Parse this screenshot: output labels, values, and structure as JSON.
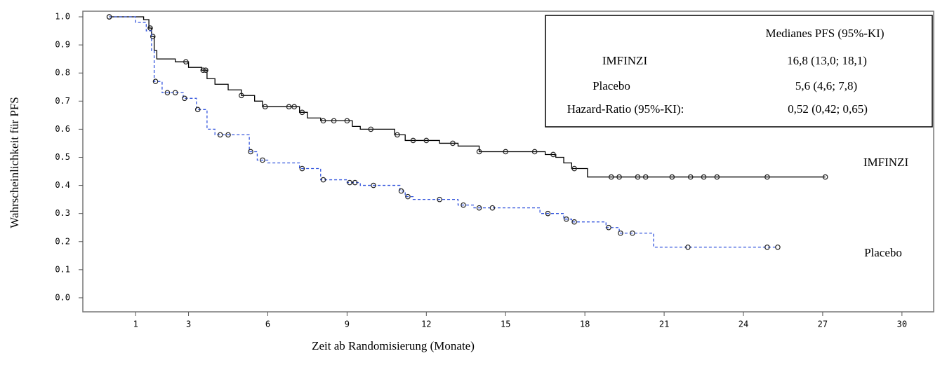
{
  "chart_data": {
    "type": "step",
    "x_label": "Zeit ab Randomisierung (Monate)",
    "y_label": "Wahrscheinlichkeit für PFS",
    "xlim": [
      -1,
      31.2
    ],
    "ylim": [
      -0.05,
      1.02
    ],
    "xticks": [
      1,
      3,
      6,
      9,
      12,
      15,
      18,
      21,
      24,
      27,
      30
    ],
    "yticks": [
      {
        "value": 0,
        "label": "0.0"
      },
      {
        "value": 0.1,
        "label": "0.1"
      },
      {
        "value": 0.2,
        "label": "0.2"
      },
      {
        "value": 0.3,
        "label": "0.3"
      },
      {
        "value": 0.4,
        "label": "0.4"
      },
      {
        "value": 0.5,
        "label": "0.5"
      },
      {
        "value": 0.6,
        "label": "0.6"
      },
      {
        "value": 0.7,
        "label": "0.7"
      },
      {
        "value": 0.8,
        "label": "0.8"
      },
      {
        "value": 0.9,
        "label": "0.9"
      },
      {
        "value": 1,
        "label": "1.0"
      }
    ],
    "series": [
      {
        "name": "IMFINZI",
        "color": "#000000",
        "line_style": "solid",
        "x": [
          0,
          1.3,
          1.5,
          1.6,
          1.7,
          1.8,
          2.5,
          3,
          3.5,
          3.7,
          4,
          4.5,
          5,
          5.5,
          5.8,
          7.2,
          7.5,
          8,
          9.2,
          9.5,
          10.8,
          11.2,
          12.5,
          13.2,
          14,
          16.5,
          16.9,
          17.2,
          17.5,
          18.1,
          27.1
        ],
        "values": [
          1.0,
          0.99,
          0.96,
          0.93,
          0.88,
          0.85,
          0.84,
          0.82,
          0.81,
          0.78,
          0.76,
          0.74,
          0.72,
          0.7,
          0.68,
          0.66,
          0.64,
          0.63,
          0.61,
          0.6,
          0.58,
          0.56,
          0.55,
          0.54,
          0.52,
          0.51,
          0.5,
          0.48,
          0.46,
          0.43,
          0.43
        ],
        "censored": [
          0,
          1.55,
          1.65,
          2.9,
          3.55,
          3.65,
          5.0,
          5.9,
          6.8,
          7.0,
          7.3,
          8.1,
          8.5,
          9.0,
          9.9,
          10.9,
          11.5,
          12.0,
          13.0,
          14.0,
          15.0,
          16.1,
          16.8,
          17.6,
          19.0,
          19.3,
          20.0,
          20.3,
          21.3,
          22.0,
          22.5,
          23.0,
          24.9,
          27.1
        ]
      },
      {
        "name": "Placebo",
        "color": "#3355dd",
        "line_style": "dashed",
        "x": [
          0,
          1.0,
          1.4,
          1.6,
          1.7,
          2.0,
          2.8,
          3.3,
          3.7,
          4.0,
          5.3,
          5.6,
          6.0,
          7.2,
          8.0,
          9.0,
          9.5,
          11.0,
          11.2,
          11.5,
          13.2,
          13.8,
          16.3,
          17.2,
          17.5,
          18.8,
          19.3,
          20.6,
          25.3
        ],
        "values": [
          1.0,
          0.98,
          0.95,
          0.88,
          0.77,
          0.73,
          0.71,
          0.67,
          0.6,
          0.58,
          0.52,
          0.49,
          0.48,
          0.46,
          0.42,
          0.41,
          0.4,
          0.38,
          0.36,
          0.35,
          0.33,
          0.32,
          0.3,
          0.28,
          0.27,
          0.25,
          0.23,
          0.18,
          0.18
        ],
        "censored": [
          0,
          1.75,
          2.2,
          2.5,
          2.85,
          3.35,
          4.2,
          4.5,
          5.35,
          5.8,
          7.3,
          8.1,
          9.1,
          9.3,
          10.0,
          11.05,
          11.3,
          12.5,
          13.4,
          14.0,
          14.5,
          16.6,
          17.3,
          17.6,
          18.9,
          19.35,
          19.8,
          21.9,
          24.9,
          25.3
        ]
      }
    ],
    "summary_table": {
      "header": "Medianes PFS (95%-KI)",
      "rows": [
        [
          "IMFINZI",
          "16,8 (13,0; 18,1)"
        ],
        [
          "Placebo",
          "5,6 (4,6; 7,8)"
        ],
        [
          "Hazard-Ratio (95%-KI):",
          "0,52 (0,42; 0,65)"
        ]
      ]
    }
  }
}
